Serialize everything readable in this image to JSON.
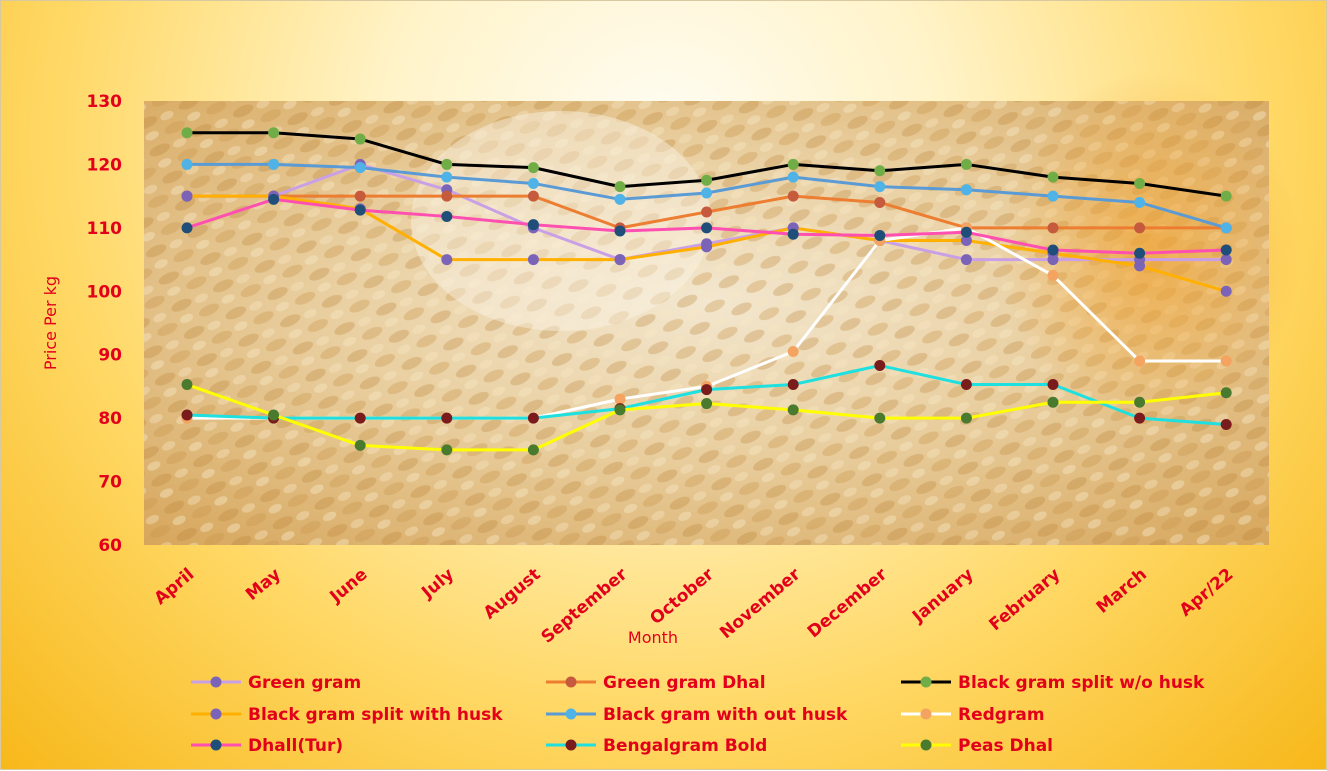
{
  "chart_data": {
    "type": "line",
    "title": "",
    "xlabel": "Month",
    "ylabel": "Price Per kg",
    "ylim": [
      60,
      130
    ],
    "yticks": [
      "60",
      "70",
      "80",
      "90",
      "100",
      "110",
      "120",
      "130"
    ],
    "grid": false,
    "legend_position": "bottom",
    "categories": [
      "April",
      "May",
      "June",
      "July",
      "August",
      "September",
      "October",
      "November",
      "December",
      "January",
      "February",
      "March",
      "Apr/22"
    ],
    "series": [
      {
        "name": "Green gram",
        "line_color": "#c9a0e6",
        "marker_color": "#7b64b8",
        "values": [
          115,
          115,
          120,
          116,
          110,
          105,
          107.5,
          110,
          108,
          105,
          105,
          105,
          105
        ]
      },
      {
        "name": "Green gram Dhal",
        "line_color": "#ec7d31",
        "marker_color": "#c55a3c",
        "values": [
          115,
          115,
          115,
          115,
          115,
          110,
          112.5,
          115,
          114,
          110,
          110,
          110,
          110
        ]
      },
      {
        "name": "Black gram split w/o husk",
        "line_color": "#000000",
        "marker_color": "#70ad47",
        "values": [
          125,
          125,
          124,
          120,
          119.5,
          116.5,
          117.5,
          120,
          119,
          120,
          118,
          117,
          115
        ]
      },
      {
        "name": "Black gram split with husk",
        "line_color": "#ffb000",
        "marker_color": "#7b64b8",
        "values": [
          115,
          115,
          113,
          105,
          105,
          105,
          107,
          110,
          108,
          108,
          106,
          104,
          100
        ]
      },
      {
        "name": "Black gram with out husk",
        "line_color": "#5b9bd5",
        "marker_color": "#4fb3e8",
        "values": [
          120,
          120,
          119.5,
          118,
          117,
          114.5,
          115.5,
          118,
          116.5,
          116,
          115,
          114,
          110
        ]
      },
      {
        "name": "Redgram",
        "line_color": "#ffffff",
        "marker_color": "#f4a460",
        "values": [
          80,
          80,
          80,
          80,
          80,
          83,
          85,
          90.5,
          108,
          110,
          102.5,
          89,
          89
        ]
      },
      {
        "name": "Dhall(Tur)",
        "line_color": "#ff4fb0",
        "marker_color": "#1f4e79",
        "values": [
          110,
          114.5,
          112.8,
          111.8,
          110.5,
          109.5,
          110,
          109,
          108.8,
          109.3,
          106.5,
          106,
          106.5
        ]
      },
      {
        "name": "Bengalgram Bold",
        "line_color": "#1ee0e0",
        "marker_color": "#7b1c1c",
        "values": [
          80.5,
          80,
          80,
          80,
          80,
          81.5,
          84.5,
          85.3,
          88.3,
          85.3,
          85.3,
          80,
          79
        ]
      },
      {
        "name": "Peas Dhal",
        "line_color": "#ffff00",
        "marker_color": "#4a7a2e",
        "values": [
          85.3,
          80.5,
          75.7,
          75,
          75,
          81.3,
          82.3,
          81.3,
          80,
          80,
          82.5,
          82.5,
          84
        ]
      }
    ]
  }
}
